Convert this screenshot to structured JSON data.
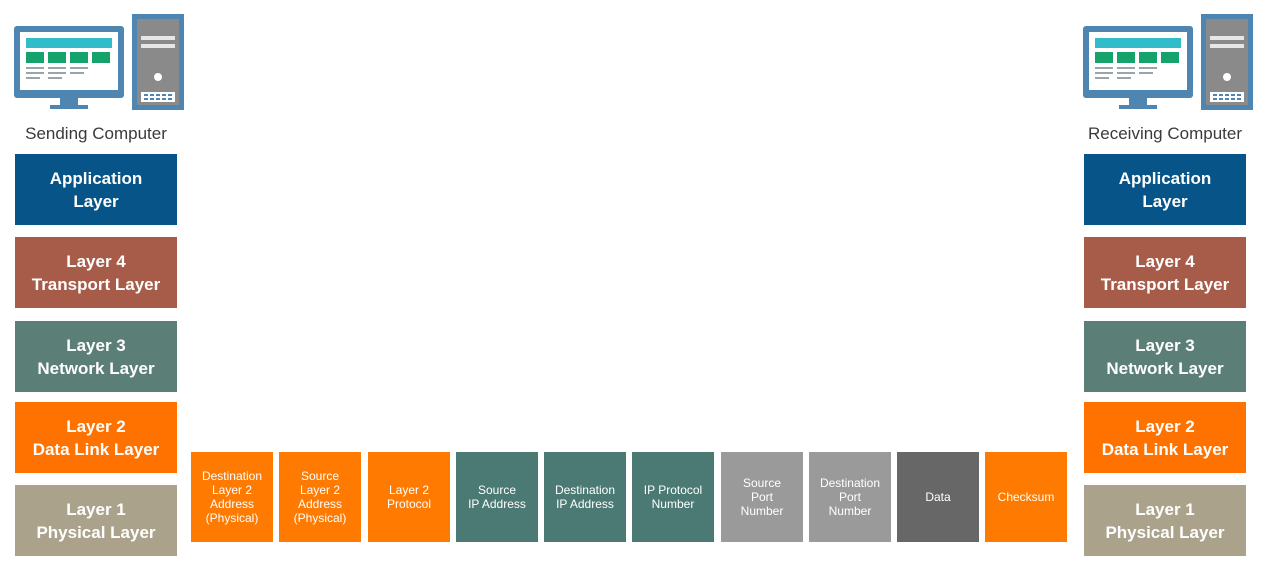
{
  "colors": {
    "application": "#075488",
    "transport": "#a75c49",
    "network": "#5b7f77",
    "data_link": "#ff7200",
    "physical": "#aba28c",
    "frame_orange": "#ff7a00",
    "frame_teal": "#4a7a73",
    "frame_gray": "#9a9a9a",
    "frame_dark": "#676767",
    "monitor_frame": "#4e86b1",
    "monitor_header": "#30bcc9",
    "monitor_green": "#17a26c",
    "tower": "#7a7a7a"
  },
  "icons": [
    "monitor-icon",
    "computer-tower-icon"
  ],
  "sending": {
    "caption": "Sending Computer",
    "layers": [
      {
        "line1": "Application",
        "line2": "Layer"
      },
      {
        "line1": "Layer 4",
        "line2": "Transport Layer"
      },
      {
        "line1": "Layer 3",
        "line2": "Network Layer"
      },
      {
        "line1": "Layer 2",
        "line2": "Data Link Layer"
      },
      {
        "line1": "Layer 1",
        "line2": "Physical Layer"
      }
    ]
  },
  "receiving": {
    "caption": "Receiving Computer",
    "layers": [
      {
        "line1": "Application",
        "line2": "Layer"
      },
      {
        "line1": "Layer 4",
        "line2": "Transport Layer"
      },
      {
        "line1": "Layer 3",
        "line2": "Network Layer"
      },
      {
        "line1": "Layer 2",
        "line2": "Data Link Layer"
      },
      {
        "line1": "Layer 1",
        "line2": "Physical Layer"
      }
    ]
  },
  "frame_fields": [
    {
      "label": "Destination\nLayer 2\nAddress\n(Physical)",
      "color": "#ff7a00"
    },
    {
      "label": "Source\nLayer 2\nAddress\n(Physical)",
      "color": "#ff7a00"
    },
    {
      "label": "Layer 2\nProtocol",
      "color": "#ff7a00"
    },
    {
      "label": "Source\nIP Address",
      "color": "#4a7a73"
    },
    {
      "label": "Destination\nIP Address",
      "color": "#4a7a73"
    },
    {
      "label": "IP Protocol\nNumber",
      "color": "#4a7a73"
    },
    {
      "label": "Source\nPort\nNumber",
      "color": "#9a9a9a"
    },
    {
      "label": "Destination\nPort\nNumber",
      "color": "#9a9a9a"
    },
    {
      "label": "Data",
      "color": "#676767"
    },
    {
      "label": "Checksum",
      "color": "#ff7a00"
    }
  ]
}
